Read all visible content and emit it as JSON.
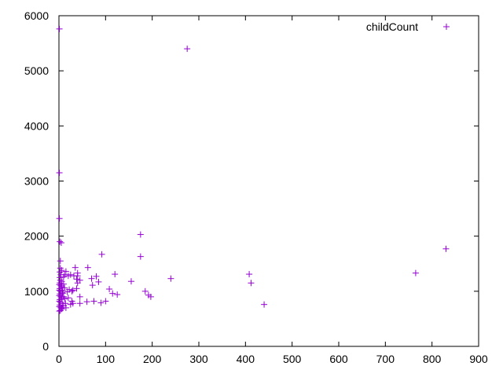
{
  "chart_data": {
    "type": "scatter",
    "title": "",
    "xlabel": "",
    "ylabel": "",
    "xlim": [
      0,
      900
    ],
    "ylim": [
      0,
      6000
    ],
    "xticks": [
      0,
      100,
      200,
      300,
      400,
      500,
      600,
      700,
      800,
      900
    ],
    "yticks": [
      0,
      1000,
      2000,
      3000,
      4000,
      5000,
      6000
    ],
    "grid": false,
    "legend": "top-right",
    "marker_color": "#9400d3",
    "series": [
      {
        "name": "childCount",
        "points": [
          [
            1,
            5760
          ],
          [
            275,
            5400
          ],
          [
            1,
            3150
          ],
          [
            1,
            2320
          ],
          [
            2,
            1900
          ],
          [
            5,
            1880
          ],
          [
            175,
            2030
          ],
          [
            175,
            1630
          ],
          [
            92,
            1670
          ],
          [
            830,
            1770
          ],
          [
            765,
            1330
          ],
          [
            408,
            1310
          ],
          [
            412,
            1150
          ],
          [
            440,
            760
          ],
          [
            240,
            1230
          ],
          [
            155,
            1180
          ],
          [
            120,
            1310
          ],
          [
            108,
            1040
          ],
          [
            115,
            960
          ],
          [
            125,
            940
          ],
          [
            185,
            1000
          ],
          [
            192,
            930
          ],
          [
            197,
            900
          ],
          [
            100,
            820
          ],
          [
            90,
            790
          ],
          [
            80,
            1270
          ],
          [
            70,
            1230
          ],
          [
            85,
            1170
          ],
          [
            72,
            1110
          ],
          [
            75,
            820
          ],
          [
            60,
            810
          ],
          [
            62,
            1430
          ],
          [
            45,
            1200
          ],
          [
            40,
            1330
          ],
          [
            40,
            1280
          ],
          [
            35,
            1430
          ],
          [
            38,
            1220
          ],
          [
            40,
            1150
          ],
          [
            38,
            1050
          ],
          [
            32,
            1280
          ],
          [
            30,
            1020
          ],
          [
            28,
            1000
          ],
          [
            25,
            1300
          ],
          [
            20,
            1280
          ],
          [
            22,
            1030
          ],
          [
            18,
            990
          ],
          [
            20,
            880
          ],
          [
            28,
            820
          ],
          [
            30,
            780
          ],
          [
            25,
            760
          ],
          [
            45,
            900
          ],
          [
            45,
            780
          ],
          [
            15,
            1360
          ],
          [
            12,
            1300
          ],
          [
            10,
            1260
          ],
          [
            10,
            1130
          ],
          [
            12,
            1060
          ],
          [
            8,
            1020
          ],
          [
            8,
            960
          ],
          [
            10,
            900
          ],
          [
            12,
            860
          ],
          [
            14,
            780
          ],
          [
            10,
            740
          ],
          [
            8,
            700
          ],
          [
            15,
            700
          ],
          [
            3,
            1550
          ],
          [
            3,
            1420
          ],
          [
            2,
            1350
          ],
          [
            4,
            1300
          ],
          [
            2,
            1250
          ],
          [
            3,
            1200
          ],
          [
            2,
            1150
          ],
          [
            4,
            1100
          ],
          [
            2,
            1050
          ],
          [
            3,
            1000
          ],
          [
            2,
            950
          ],
          [
            4,
            900
          ],
          [
            2,
            850
          ],
          [
            3,
            800
          ],
          [
            2,
            750
          ],
          [
            4,
            700
          ],
          [
            3,
            650
          ],
          [
            6,
            1380
          ],
          [
            6,
            1180
          ],
          [
            6,
            1080
          ],
          [
            7,
            980
          ],
          [
            6,
            880
          ],
          [
            7,
            780
          ],
          [
            6,
            680
          ],
          [
            1,
            1120
          ],
          [
            1,
            1020
          ],
          [
            1,
            920
          ],
          [
            1,
            820
          ],
          [
            1,
            720
          ],
          [
            1,
            640
          ]
        ]
      }
    ]
  }
}
